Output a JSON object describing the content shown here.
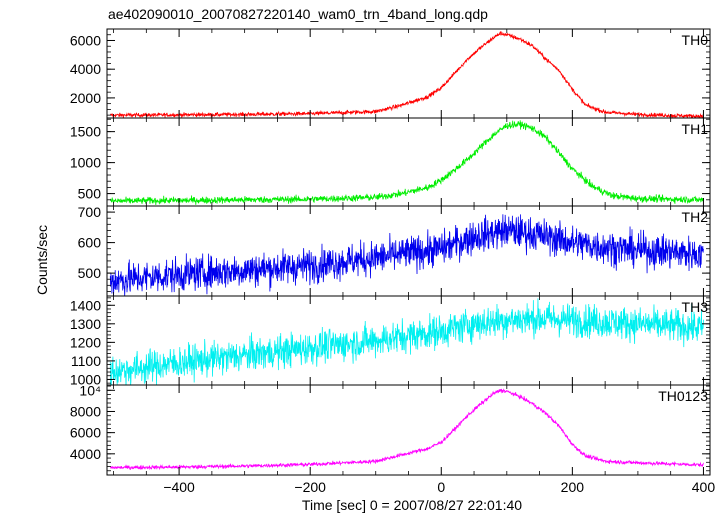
{
  "chart_data": {
    "type": "line",
    "title": "ae402090010_20070827220140_wam0_trn_4band_long.qdp",
    "xlabel": "Time [sec] 0 = 2007/08/27 22:01:40",
    "ylabel": "Counts/sec",
    "xlim": [
      -510,
      410
    ],
    "x_ticks": [
      -400,
      -200,
      0,
      200,
      400
    ],
    "x_tick_labels": [
      "−400",
      "−200",
      "0",
      "200",
      "400"
    ],
    "panels": [
      {
        "name": "TH0",
        "color": "#ff0000",
        "ylim": [
          600,
          6800
        ],
        "y_ticks": [
          2000,
          4000,
          6000
        ],
        "y_tick_labels": [
          "2000",
          "4000",
          "6000"
        ],
        "x": [
          -505,
          -400,
          -300,
          -200,
          -100,
          -60,
          -20,
          0,
          20,
          40,
          60,
          80,
          90,
          100,
          120,
          140,
          160,
          180,
          200,
          220,
          250,
          300,
          350,
          400
        ],
        "y": [
          800,
          820,
          850,
          900,
          1050,
          1500,
          2100,
          2700,
          3700,
          4700,
          5500,
          6200,
          6500,
          6400,
          6100,
          5600,
          4700,
          3900,
          2600,
          1500,
          1000,
          850,
          780,
          720
        ],
        "noise": 70
      },
      {
        "name": "TH1",
        "color": "#00ee00",
        "ylim": [
          300,
          1720
        ],
        "y_ticks": [
          500,
          1000,
          1500
        ],
        "y_tick_labels": [
          "500",
          "1000",
          "1500"
        ],
        "x": [
          -505,
          -400,
          -300,
          -200,
          -100,
          -60,
          -20,
          0,
          20,
          40,
          60,
          80,
          100,
          120,
          140,
          160,
          180,
          200,
          230,
          260,
          300,
          350,
          400
        ],
        "y": [
          380,
          390,
          400,
          410,
          440,
          500,
          600,
          720,
          880,
          1050,
          1250,
          1450,
          1600,
          1620,
          1550,
          1400,
          1150,
          900,
          620,
          470,
          420,
          410,
          400
        ],
        "noise": 28
      },
      {
        "name": "TH2",
        "color": "#0000ee",
        "ylim": [
          425,
          720
        ],
        "y_ticks": [
          500,
          600,
          700
        ],
        "y_tick_labels": [
          "500",
          "600",
          "700"
        ],
        "x": [
          -505,
          -400,
          -300,
          -200,
          -100,
          0,
          50,
          100,
          150,
          200,
          250,
          300,
          350,
          400
        ],
        "y": [
          475,
          495,
          510,
          525,
          550,
          580,
          620,
          640,
          625,
          600,
          585,
          575,
          570,
          560
        ],
        "noise": 28
      },
      {
        "name": "TH3",
        "color": "#00f0f0",
        "ylim": [
          970,
          1450
        ],
        "y_ticks": [
          1000,
          1100,
          1200,
          1300,
          1400
        ],
        "y_tick_labels": [
          "1000",
          "1100",
          "1200",
          "1300",
          "1400"
        ],
        "x": [
          -505,
          -400,
          -300,
          -200,
          -100,
          0,
          50,
          100,
          150,
          200,
          250,
          300,
          350,
          400
        ],
        "y": [
          1040,
          1090,
          1130,
          1170,
          1210,
          1260,
          1300,
          1320,
          1330,
          1320,
          1310,
          1300,
          1290,
          1280
        ],
        "noise": 45
      },
      {
        "name": "TH0123",
        "color": "#ff00ff",
        "ylim": [
          2000,
          10500
        ],
        "y_ticks": [
          4000,
          6000,
          8000,
          10000
        ],
        "y_tick_labels": [
          "4000",
          "6000",
          "8000",
          "10⁴"
        ],
        "x": [
          -505,
          -400,
          -300,
          -200,
          -100,
          -60,
          -20,
          0,
          20,
          40,
          60,
          80,
          90,
          100,
          120,
          140,
          160,
          180,
          200,
          220,
          250,
          300,
          350,
          400
        ],
        "y": [
          2700,
          2750,
          2850,
          3000,
          3300,
          3900,
          4500,
          5100,
          6300,
          7600,
          8700,
          9700,
          10000,
          9900,
          9400,
          8700,
          7800,
          6600,
          4900,
          3800,
          3300,
          3150,
          3050,
          2950
        ],
        "noise": 90
      }
    ]
  }
}
